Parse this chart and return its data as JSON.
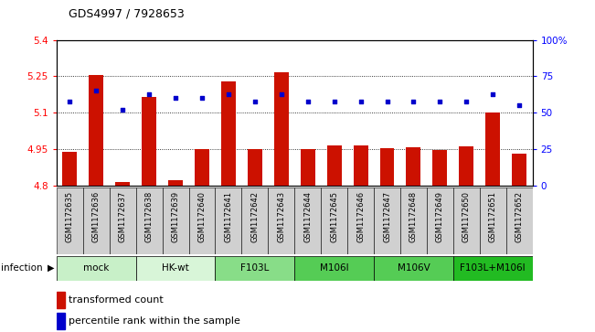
{
  "title": "GDS4997 / 7928653",
  "samples": [
    "GSM1172635",
    "GSM1172636",
    "GSM1172637",
    "GSM1172638",
    "GSM1172639",
    "GSM1172640",
    "GSM1172641",
    "GSM1172642",
    "GSM1172643",
    "GSM1172644",
    "GSM1172645",
    "GSM1172646",
    "GSM1172647",
    "GSM1172648",
    "GSM1172649",
    "GSM1172650",
    "GSM1172651",
    "GSM1172652"
  ],
  "bar_values": [
    4.94,
    5.257,
    4.817,
    5.165,
    4.822,
    4.952,
    5.23,
    4.95,
    5.265,
    4.95,
    4.966,
    4.967,
    4.955,
    4.957,
    4.949,
    4.964,
    5.1,
    4.932
  ],
  "percentile_values": [
    58,
    65,
    52,
    63,
    60,
    60,
    63,
    58,
    63,
    58,
    58,
    58,
    58,
    58,
    58,
    58,
    63,
    55
  ],
  "groups": [
    {
      "label": "mock",
      "start": 0,
      "end": 3,
      "color": "#c8f0c8"
    },
    {
      "label": "HK-wt",
      "start": 3,
      "end": 6,
      "color": "#d8f5d8"
    },
    {
      "label": "F103L",
      "start": 6,
      "end": 9,
      "color": "#88dd88"
    },
    {
      "label": "M106I",
      "start": 9,
      "end": 12,
      "color": "#55cc55"
    },
    {
      "label": "M106V",
      "start": 12,
      "end": 15,
      "color": "#55cc55"
    },
    {
      "label": "F103L+M106I",
      "start": 15,
      "end": 18,
      "color": "#22bb22"
    }
  ],
  "ylim_left": [
    4.8,
    5.4
  ],
  "ylim_right": [
    0,
    100
  ],
  "yticks_left": [
    4.8,
    4.95,
    5.1,
    5.25,
    5.4
  ],
  "ytick_labels_left": [
    "4.8",
    "4.95",
    "5.1",
    "5.25",
    "5.4"
  ],
  "yticks_right": [
    0,
    25,
    50,
    75,
    100
  ],
  "ytick_labels_right": [
    "0",
    "25",
    "50",
    "75",
    "100%"
  ],
  "bar_color": "#cc1100",
  "dot_color": "#0000cc",
  "bar_width": 0.55,
  "infection_label": "infection",
  "legend_bar_label": "transformed count",
  "legend_dot_label": "percentile rank within the sample",
  "sample_box_color": "#d0d0d0",
  "grid_color": "black",
  "grid_linestyle": ":"
}
